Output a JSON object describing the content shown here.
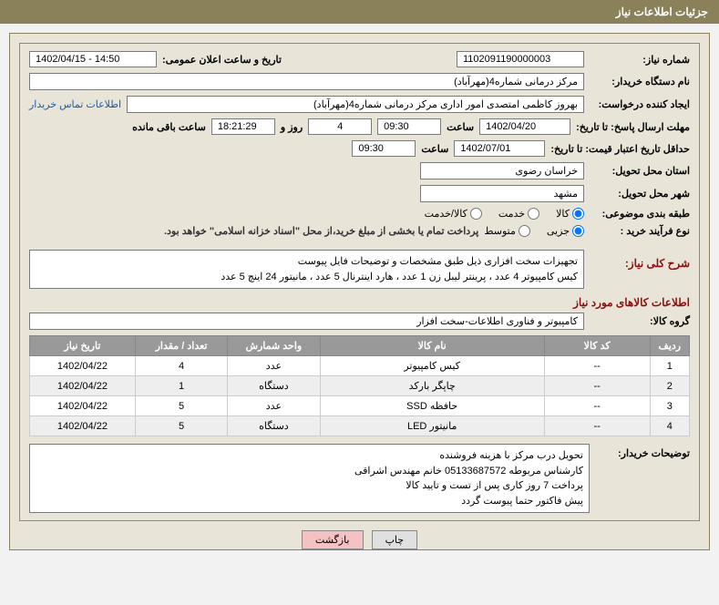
{
  "header": {
    "title": "جزئیات اطلاعات نیاز"
  },
  "fields": {
    "need_number_label": "شماره نیاز:",
    "need_number": "1102091190000003",
    "announce_label": "تاریخ و ساعت اعلان عمومی:",
    "announce": "1402/04/15 - 14:50",
    "buyer_org_label": "نام دستگاه خریدار:",
    "buyer_org": "مرکز درمانی شماره4(مهرآباد)",
    "requester_label": "ایجاد کننده درخواست:",
    "requester": "بهروز کاظمی امتصدی امور اداری مرکز درمانی شماره4(مهرآباد)",
    "contact_link": "اطلاعات تماس خریدار",
    "deadline_label": "مهلت ارسال پاسخ: تا تاریخ:",
    "deadline_date": "1402/04/20",
    "time_label": "ساعت",
    "deadline_time": "09:30",
    "days_remain": "4",
    "days_label": "روز و",
    "time_remain": "18:21:29",
    "remain_label": "ساعت باقی مانده",
    "validity_label": "حداقل تاریخ اعتبار قیمت: تا تاریخ:",
    "validity_date": "1402/07/01",
    "validity_time": "09:30",
    "province_label": "استان محل تحویل:",
    "province": "خراسان رضوی",
    "city_label": "شهر محل تحویل:",
    "city": "مشهد",
    "category_label": "طبقه بندی موضوعی:",
    "cat_goods": "کالا",
    "cat_service": "خدمت",
    "cat_both": "کالا/خدمت",
    "process_label": "نوع فرآیند خرید :",
    "proc_small": "جزیی",
    "proc_medium": "متوسط",
    "payment_note": "پرداخت تمام یا بخشی از مبلغ خرید،از محل \"اسناد خزانه اسلامی\" خواهد بود.",
    "summary_label": "شرح کلی نیاز:",
    "summary_line1": "تجهیزات سخت افزاری ذیل طبق مشخصات و توضیحات فایل پیوست",
    "summary_line2": "کیس کامپیوتر 4 عدد ، پرینتر لیبل زن 1 عدد ، هارد اینترنال 5 عدد ، مانیتور 24 اینچ 5 عدد",
    "goods_section": "اطلاعات کالاهای مورد نیاز",
    "group_label": "گروه کالا:",
    "group": "کامپیوتر و فناوری اطلاعات-سخت افزار",
    "buyer_notes_label": "توضیحات خریدار:",
    "buyer_notes_l1": "تحویل درب مرکز با هزینه فروشنده",
    "buyer_notes_l2": "کارشناس مربوطه 05133687572 خانم مهندس اشراقی",
    "buyer_notes_l3": "پرداخت 7 روز کاری پس از تست و تایید کالا",
    "buyer_notes_l4": "پیش فاکتور حتما پیوست گردد"
  },
  "table": {
    "headers": {
      "row": "ردیف",
      "code": "کد کالا",
      "name": "نام کالا",
      "unit": "واحد شمارش",
      "qty": "تعداد / مقدار",
      "date": "تاریخ نیاز"
    },
    "rows": [
      {
        "row": "1",
        "code": "--",
        "name": "کیس کامپیوتر",
        "unit": "عدد",
        "qty": "4",
        "date": "1402/04/22"
      },
      {
        "row": "2",
        "code": "--",
        "name": "چاپگر بارکد",
        "unit": "دستگاه",
        "qty": "1",
        "date": "1402/04/22"
      },
      {
        "row": "3",
        "code": "--",
        "name": "حافظه SSD",
        "unit": "عدد",
        "qty": "5",
        "date": "1402/04/22"
      },
      {
        "row": "4",
        "code": "--",
        "name": "مانیتور LED",
        "unit": "دستگاه",
        "qty": "5",
        "date": "1402/04/22"
      }
    ]
  },
  "buttons": {
    "print": "چاپ",
    "back": "بازگشت"
  }
}
